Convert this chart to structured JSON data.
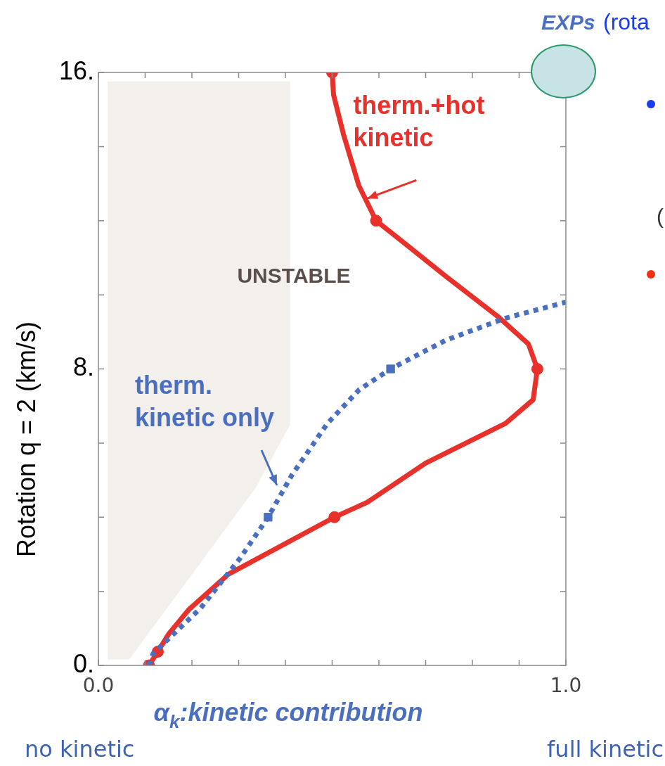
{
  "chart_data": {
    "type": "line",
    "xlabel": "α$_{k}$:kinetic contribution",
    "ylabel": "Rotation q = 2 (km/s)",
    "xlim": [
      0,
      1
    ],
    "ylim": [
      0,
      16
    ],
    "xticks": [
      {
        "value": 0,
        "label": "0.0"
      },
      {
        "value": 0.1,
        "label": null
      },
      {
        "value": 0.2,
        "label": null
      },
      {
        "value": 0.3,
        "label": null
      },
      {
        "value": 0.4,
        "label": null
      },
      {
        "value": 0.5,
        "label": null
      },
      {
        "value": 0.6,
        "label": null
      },
      {
        "value": 0.7,
        "label": null
      },
      {
        "value": 0.8,
        "label": null
      },
      {
        "value": 0.9,
        "label": null
      },
      {
        "value": 1,
        "label": "1.0"
      }
    ],
    "yticks": [
      {
        "value": 0,
        "label": "0."
      },
      {
        "value": 2,
        "label": null
      },
      {
        "value": 4,
        "label": null
      },
      {
        "value": 6,
        "label": null
      },
      {
        "value": 8,
        "label": "8."
      },
      {
        "value": 10,
        "label": null
      },
      {
        "value": 12,
        "label": null
      },
      {
        "value": 14,
        "label": null
      },
      {
        "value": 16,
        "label": "16."
      }
    ],
    "grid": false,
    "legend": false,
    "series": [
      {
        "type": "area",
        "color": "#f3f0ec",
        "x": [
          0.02,
          0.02,
          0.066,
          0.337,
          0.41,
          0.41
        ],
        "values": [
          15.76,
          0.16,
          0.16,
          4.8,
          6.5,
          15.76
        ]
      },
      {
        "type": "line",
        "line_style": "dashed",
        "color": "#4a6fc0",
        "x": [
          0.108,
          0.117,
          0.219,
          0.303,
          0.363,
          0.414,
          0.49,
          0.558,
          0.625,
          0.744,
          0.871,
          1.0
        ],
        "values": [
          0,
          0.32,
          1.55,
          2.89,
          4,
          5.14,
          6.53,
          7.44,
          8,
          8.78,
          9.37,
          9.8
        ]
      },
      {
        "type": "line",
        "line_style": "solid",
        "color": "#e8312a",
        "x": [
          0.108,
          0.127,
          0.151,
          0.193,
          0.278,
          0.505,
          0.575,
          0.7,
          0.871,
          0.93,
          0.939,
          0.92,
          0.854,
          0.744,
          0.659,
          0.594,
          0.557,
          0.524,
          0.503,
          0.5
        ],
        "values": [
          0,
          0.37,
          0.86,
          1.5,
          2.46,
          4,
          4.4,
          5.46,
          6.53,
          7.17,
          8,
          8.67,
          9.42,
          10.49,
          11.35,
          12,
          12.95,
          14.34,
          15.4,
          16
        ]
      },
      {
        "type": "scatter",
        "marker": "square",
        "color": "#4a6fc0",
        "x": [
          0.363,
          0.625
        ],
        "values": [
          4,
          8
        ]
      },
      {
        "type": "scatter",
        "marker": "circle",
        "color": "#e8312a",
        "x": [
          0.108,
          0.127,
          0.505,
          0.939,
          0.594,
          0.5
        ],
        "values": [
          0,
          0.37,
          4,
          8,
          12,
          16
        ]
      }
    ],
    "annotations": [
      "UNSTABLE",
      {
        "text": "therm.+hot kinetic",
        "x": 0.575,
        "y": 12.6
      },
      "therm. kinetic only",
      "no kinetic",
      "full kinetic",
      "EXPs",
      "(rota",
      "("
    ]
  }
}
